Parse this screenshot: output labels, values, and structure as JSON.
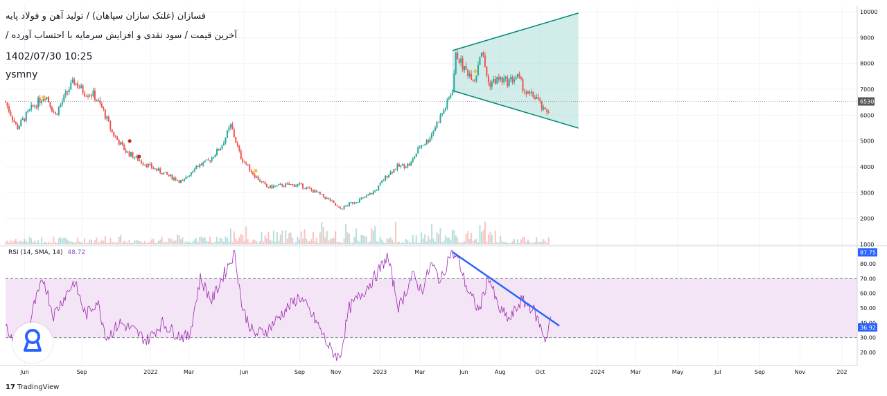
{
  "title": {
    "line1": "فسازان (غلتک سازان سپاهان) / تولید آهن و فولاد پایه",
    "line2": "آخرین قیمت / سود نقدی و افزایش سرمایه با احتساب آورده /",
    "timestamp": "1402/07/30 10:25",
    "author": "ysmny"
  },
  "rsi_legend": {
    "label": "RSI (14, SMA, 14)",
    "value": "48.72"
  },
  "branding": {
    "logo_text": "TradingView"
  },
  "colors": {
    "up": "#26a69a",
    "down": "#ef5350",
    "channel_fill": "#b2dfdb",
    "channel_line": "#00897b",
    "rsi_line": "#9c27b0",
    "rsi_band": "#f3e5f5",
    "trendline": "#2962ff",
    "badge": "#2962ff",
    "marker_red": "#c62828",
    "marker_yellow": "#fbc02d"
  },
  "chart_data": [
    {
      "type": "candlestick",
      "y_axis_ticks": [
        "10000",
        "9000",
        "8000",
        "7000",
        "6000",
        "5000",
        "4000",
        "3000",
        "2000",
        "1000"
      ],
      "ylim": [
        1000,
        10000
      ],
      "last_price_label": "6530",
      "x_axis_labels": [
        "Jun",
        "Sep",
        "2022",
        "Mar",
        "Jun",
        "Sep",
        "Nov",
        "2023",
        "Mar",
        "Jun",
        "Aug",
        "Oct",
        "2024",
        "Mar",
        "May",
        "Jul",
        "Sep",
        "Nov",
        "202"
      ],
      "x_axis_label_months": [
        1.0,
        4.0,
        7.6,
        9.6,
        12.5,
        15.4,
        17.3,
        19.6,
        21.7,
        24.0,
        25.9,
        28.0,
        31.0,
        33.0,
        35.2,
        37.3,
        39.5,
        41.6,
        43.8
      ],
      "price_path": [
        [
          0,
          6500
        ],
        [
          0.6,
          5500
        ],
        [
          1.4,
          6300
        ],
        [
          2.1,
          6800
        ],
        [
          2.6,
          6000
        ],
        [
          3.3,
          7000
        ],
        [
          3.6,
          7300
        ],
        [
          4.1,
          6900
        ],
        [
          4.6,
          6800
        ],
        [
          5.1,
          6200
        ],
        [
          5.6,
          5300
        ],
        [
          6.3,
          4600
        ],
        [
          6.9,
          4300
        ],
        [
          7.6,
          4000
        ],
        [
          8.4,
          3700
        ],
        [
          9.3,
          3400
        ],
        [
          9.9,
          4000
        ],
        [
          10.6,
          4200
        ],
        [
          11.3,
          4800
        ],
        [
          11.8,
          5600
        ],
        [
          12.3,
          4400
        ],
        [
          13.0,
          3700
        ],
        [
          13.7,
          3200
        ],
        [
          14.6,
          3300
        ],
        [
          15.4,
          3300
        ],
        [
          16.3,
          3000
        ],
        [
          17.0,
          2700
        ],
        [
          17.5,
          2350
        ],
        [
          18.1,
          2600
        ],
        [
          18.8,
          2800
        ],
        [
          19.4,
          3100
        ],
        [
          20.0,
          3700
        ],
        [
          20.5,
          4000
        ],
        [
          21.2,
          4100
        ],
        [
          21.7,
          4800
        ],
        [
          22.1,
          5000
        ],
        [
          22.6,
          5700
        ],
        [
          23.1,
          6400
        ],
        [
          23.4,
          7000
        ],
        [
          23.6,
          8400
        ],
        [
          24.0,
          7800
        ],
        [
          24.6,
          7400
        ],
        [
          24.9,
          8600
        ],
        [
          25.3,
          7200
        ],
        [
          25.8,
          7400
        ],
        [
          26.3,
          7300
        ],
        [
          26.8,
          7500
        ],
        [
          27.3,
          6800
        ],
        [
          27.8,
          6700
        ],
        [
          28.2,
          6100
        ],
        [
          28.5,
          6200
        ]
      ],
      "volume_bars_present": true,
      "channel": {
        "upper": [
          [
            23.4,
            8500
          ],
          [
            30.0,
            9950
          ]
        ],
        "lower": [
          [
            23.4,
            6950
          ],
          [
            30.0,
            5500
          ]
        ]
      },
      "markers": [
        {
          "x": 2.0,
          "y": 6700,
          "color": "yellow"
        },
        {
          "x": 6.5,
          "y": 5000,
          "color": "red"
        },
        {
          "x": 7.0,
          "y": 4400,
          "color": "red"
        },
        {
          "x": 13.1,
          "y": 3850,
          "color": "yellow"
        },
        {
          "x": 24.6,
          "y": 7700,
          "color": "yellow"
        }
      ]
    },
    {
      "type": "line",
      "name": "RSI (14, SMA, 14)",
      "y_axis_ticks": [
        "80.00",
        "70.00",
        "60.00",
        "50.00",
        "40.00",
        "30.00",
        "20.00"
      ],
      "ylim": [
        10,
        90
      ],
      "band": [
        30,
        70
      ],
      "current_value_label": "87.75",
      "secondary_value_label": "36.92",
      "rsi_path": [
        [
          0,
          42
        ],
        [
          0.4,
          25
        ],
        [
          0.9,
          18
        ],
        [
          1.5,
          52
        ],
        [
          2.0,
          70
        ],
        [
          2.5,
          45
        ],
        [
          3.2,
          60
        ],
        [
          3.6,
          68
        ],
        [
          4.2,
          45
        ],
        [
          4.8,
          55
        ],
        [
          5.3,
          30
        ],
        [
          6.0,
          40
        ],
        [
          6.7,
          35
        ],
        [
          7.4,
          28
        ],
        [
          8.2,
          40
        ],
        [
          9.0,
          32
        ],
        [
          9.6,
          30
        ],
        [
          10.2,
          70
        ],
        [
          10.8,
          55
        ],
        [
          11.4,
          72
        ],
        [
          12.0,
          88
        ],
        [
          12.4,
          50
        ],
        [
          13.0,
          32
        ],
        [
          13.7,
          35
        ],
        [
          14.6,
          48
        ],
        [
          15.4,
          58
        ],
        [
          16.3,
          40
        ],
        [
          17.0,
          22
        ],
        [
          17.5,
          16
        ],
        [
          18.0,
          50
        ],
        [
          18.8,
          62
        ],
        [
          19.4,
          72
        ],
        [
          20.0,
          85
        ],
        [
          20.6,
          50
        ],
        [
          21.3,
          72
        ],
        [
          21.8,
          62
        ],
        [
          22.3,
          80
        ],
        [
          22.8,
          68
        ],
        [
          23.3,
          88
        ],
        [
          23.7,
          83
        ],
        [
          24.2,
          62
        ],
        [
          24.8,
          48
        ],
        [
          25.3,
          72
        ],
        [
          25.8,
          50
        ],
        [
          26.4,
          42
        ],
        [
          27.0,
          55
        ],
        [
          27.6,
          50
        ],
        [
          28.0,
          38
        ],
        [
          28.3,
          28
        ],
        [
          28.6,
          48
        ]
      ],
      "trendline": [
        [
          23.4,
          88
        ],
        [
          29.0,
          38
        ]
      ]
    }
  ]
}
